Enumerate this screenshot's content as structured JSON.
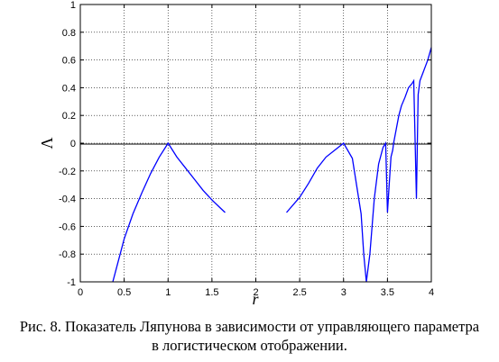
{
  "chart_data": {
    "type": "line",
    "title": "",
    "xlabel": "r",
    "ylabel": "Λ",
    "xlim": [
      0,
      4
    ],
    "ylim": [
      -1,
      1
    ],
    "x_ticks": [
      0,
      0.5,
      1,
      1.5,
      2,
      2.5,
      3,
      3.5,
      4
    ],
    "x_tick_labels": [
      "0",
      "0.5",
      "1",
      "1.5",
      "2",
      "2.5",
      "3",
      "3.5",
      "4"
    ],
    "y_ticks": [
      -1,
      -0.8,
      -0.6,
      -0.4,
      -0.2,
      0,
      0.2,
      0.4,
      0.6,
      0.8,
      1
    ],
    "y_tick_labels": [
      "-1",
      "-0.8",
      "-0.6",
      "-0.4",
      "-0.2",
      "0",
      "0.2",
      "0.4",
      "0.6",
      "0.8",
      "1"
    ],
    "grid": true,
    "zero_line": true,
    "series": [
      {
        "color": "#0000ff",
        "x": [
          0.37,
          0.5,
          0.6,
          0.7,
          0.8,
          0.9,
          1.0,
          1.1,
          1.2,
          1.3,
          1.4,
          1.5,
          1.6,
          1.65,
          2.35,
          2.5,
          2.6,
          2.7,
          2.8,
          2.9,
          3.0,
          3.1,
          3.2,
          3.23,
          3.26,
          3.3,
          3.35,
          3.4,
          3.45,
          3.48,
          3.5,
          3.52,
          3.54,
          3.56,
          3.57,
          3.6,
          3.63,
          3.66,
          3.7,
          3.74,
          3.78,
          3.8,
          3.83,
          3.85,
          3.87,
          3.9,
          3.93,
          3.96,
          4.0
        ],
        "y": [
          -1,
          -0.69,
          -0.51,
          -0.36,
          -0.22,
          -0.1,
          0.0,
          -0.1,
          -0.18,
          -0.26,
          -0.34,
          -0.41,
          -0.47,
          -0.5,
          -0.5,
          -0.39,
          -0.29,
          -0.18,
          -0.1,
          -0.05,
          0.0,
          -0.11,
          -0.51,
          -0.8,
          -1,
          -0.8,
          -0.4,
          -0.15,
          -0.03,
          0.0,
          -0.5,
          -0.3,
          -0.1,
          -0.05,
          0.0,
          0.1,
          0.2,
          0.27,
          0.33,
          0.4,
          0.43,
          0.45,
          -0.4,
          0.35,
          0.45,
          0.5,
          0.55,
          0.6,
          0.69
        ]
      }
    ]
  },
  "caption": {
    "line1": "Рис. 8. Показатель Ляпунова в зависимости от управляющего параметра",
    "line2": "в логистическом отображении."
  }
}
